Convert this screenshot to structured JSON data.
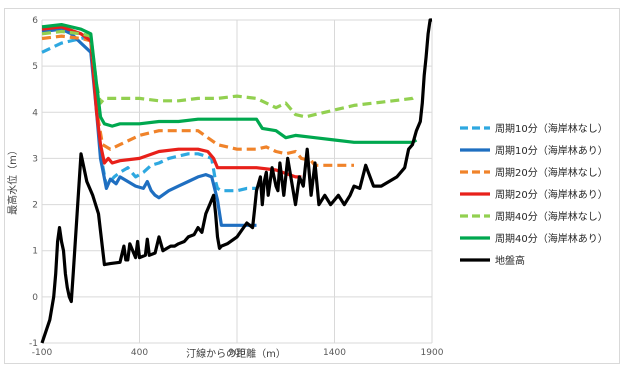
{
  "chart_data": {
    "type": "line",
    "xlabel": "汀線からの距離（m）",
    "ylabel": "最高水位（m）",
    "xlim": [
      -100,
      1900
    ],
    "ylim": [
      -1,
      6
    ],
    "xticks": [
      "-100",
      "400",
      "900",
      "1400",
      "1900"
    ],
    "yticks": [
      "-1",
      "0",
      "1",
      "2",
      "3",
      "4",
      "5",
      "6"
    ],
    "grid": true,
    "legend_position": "right",
    "series": [
      {
        "name": "周期10分（海岸林なし）",
        "color": "#2ea8e0",
        "dash": "dashed",
        "x": [
          -100,
          0,
          100,
          150,
          200,
          230,
          250,
          270,
          300,
          340,
          380,
          420,
          460,
          500,
          550,
          600,
          650,
          700,
          740,
          770,
          790,
          800,
          820,
          860,
          900,
          950,
          1000
        ],
        "y": [
          5.3,
          5.5,
          5.6,
          5.65,
          3.1,
          2.4,
          2.5,
          2.6,
          2.7,
          2.8,
          2.6,
          2.7,
          2.85,
          2.9,
          3.0,
          3.05,
          3.1,
          3.1,
          3.05,
          3.0,
          2.5,
          2.35,
          2.3,
          2.3,
          2.3,
          2.35,
          2.35
        ]
      },
      {
        "name": "周期10分（海岸林あり）",
        "color": "#1f6fc1",
        "dash": "solid",
        "x": [
          -100,
          0,
          50,
          100,
          150,
          180,
          200,
          230,
          250,
          280,
          300,
          340,
          380,
          420,
          440,
          460,
          480,
          500,
          550,
          600,
          650,
          700,
          740,
          770,
          800,
          820,
          860,
          900,
          950,
          1000
        ],
        "y": [
          5.75,
          5.8,
          5.7,
          5.5,
          5.3,
          4.0,
          3.0,
          2.35,
          2.55,
          2.45,
          2.6,
          2.5,
          2.4,
          2.35,
          2.5,
          2.3,
          2.2,
          2.15,
          2.3,
          2.4,
          2.5,
          2.6,
          2.65,
          2.6,
          2.1,
          1.55,
          1.55,
          1.55,
          1.55,
          1.55
        ]
      },
      {
        "name": "周期20分（海岸林なし）",
        "color": "#f0832a",
        "dash": "dashed",
        "x": [
          -100,
          0,
          100,
          150,
          190,
          210,
          250,
          300,
          400,
          500,
          600,
          700,
          800,
          900,
          1000,
          1050,
          1100,
          1150,
          1200,
          1230,
          1280,
          1300,
          1400,
          1500
        ],
        "y": [
          5.6,
          5.65,
          5.6,
          5.55,
          3.8,
          3.3,
          3.2,
          3.3,
          3.5,
          3.6,
          3.6,
          3.6,
          3.3,
          3.2,
          3.2,
          3.25,
          3.15,
          3.1,
          3.15,
          3.0,
          2.95,
          2.85,
          2.85,
          2.85
        ]
      },
      {
        "name": "周期20分（海岸林あり）",
        "color": "#e8201a",
        "dash": "solid",
        "x": [
          -100,
          0,
          100,
          150,
          180,
          200,
          220,
          240,
          260,
          300,
          400,
          500,
          600,
          700,
          750,
          780,
          800,
          850,
          900,
          1000,
          1100,
          1200,
          1220,
          1230
        ],
        "y": [
          5.8,
          5.85,
          5.7,
          5.55,
          4.0,
          3.3,
          2.9,
          3.0,
          2.9,
          2.95,
          3.0,
          3.15,
          3.2,
          3.2,
          3.15,
          3.0,
          2.8,
          2.8,
          2.8,
          2.8,
          2.75,
          2.6,
          2.6,
          2.6
        ]
      },
      {
        "name": "周期40分（海岸林なし）",
        "color": "#92d050",
        "dash": "dashed",
        "x": [
          -100,
          0,
          100,
          150,
          180,
          200,
          220,
          260,
          300,
          400,
          500,
          600,
          700,
          800,
          900,
          1000,
          1050,
          1100,
          1150,
          1200,
          1250,
          1300,
          1400,
          1500,
          1600,
          1700,
          1800,
          1820
        ],
        "y": [
          5.7,
          5.75,
          5.7,
          5.65,
          4.6,
          4.2,
          4.3,
          4.3,
          4.3,
          4.3,
          4.25,
          4.25,
          4.3,
          4.3,
          4.35,
          4.3,
          4.2,
          4.1,
          4.2,
          3.95,
          3.9,
          3.95,
          4.05,
          4.15,
          4.2,
          4.25,
          4.3,
          4.35
        ]
      },
      {
        "name": "周期40分（海岸林あり）",
        "color": "#00a84f",
        "dash": "solid",
        "x": [
          -100,
          0,
          100,
          150,
          180,
          200,
          220,
          260,
          300,
          400,
          500,
          600,
          700,
          800,
          900,
          1000,
          1030,
          1100,
          1150,
          1200,
          1300,
          1400,
          1500,
          1600,
          1700,
          1800,
          1820
        ],
        "y": [
          5.85,
          5.9,
          5.8,
          5.7,
          4.6,
          3.9,
          3.75,
          3.7,
          3.75,
          3.75,
          3.8,
          3.8,
          3.85,
          3.85,
          3.85,
          3.85,
          3.65,
          3.6,
          3.45,
          3.5,
          3.45,
          3.4,
          3.35,
          3.35,
          3.35,
          3.35,
          3.4
        ]
      },
      {
        "name": "地盤高",
        "color": "#000000",
        "dash": "solid",
        "x": [
          -100,
          -60,
          -40,
          -30,
          -20,
          -10,
          0,
          10,
          20,
          30,
          40,
          50,
          60,
          80,
          100,
          130,
          160,
          190,
          220,
          250,
          300,
          320,
          330,
          340,
          350,
          380,
          390,
          400,
          430,
          440,
          450,
          480,
          500,
          520,
          540,
          560,
          580,
          600,
          630,
          650,
          680,
          700,
          720,
          740,
          760,
          780,
          790,
          800,
          810,
          820,
          850,
          900,
          950,
          980,
          990,
          1000,
          1020,
          1030,
          1040,
          1050,
          1060,
          1080,
          1100,
          1110,
          1120,
          1140,
          1160,
          1180,
          1200,
          1220,
          1240,
          1260,
          1280,
          1300,
          1320,
          1350,
          1380,
          1400,
          1420,
          1450,
          1480,
          1500,
          1530,
          1560,
          1600,
          1640,
          1680,
          1720,
          1760,
          1780,
          1800,
          1820,
          1840,
          1850,
          1860,
          1870,
          1880,
          1890,
          1900
        ],
        "y": [
          -1.0,
          -0.5,
          0.0,
          0.5,
          1.2,
          1.5,
          1.2,
          1.0,
          0.5,
          0.2,
          0.0,
          -0.1,
          0.5,
          1.8,
          3.1,
          2.5,
          2.2,
          1.8,
          0.7,
          0.72,
          0.75,
          1.1,
          0.8,
          0.8,
          1.15,
          0.85,
          1.2,
          0.85,
          0.9,
          1.25,
          0.9,
          0.95,
          1.3,
          1.0,
          1.05,
          1.1,
          1.1,
          1.15,
          1.2,
          1.3,
          1.35,
          1.5,
          1.4,
          1.8,
          2.0,
          2.2,
          1.8,
          1.3,
          1.05,
          1.1,
          1.15,
          1.3,
          1.6,
          1.5,
          1.9,
          2.3,
          2.6,
          2.0,
          2.5,
          2.7,
          2.2,
          2.8,
          2.4,
          2.3,
          2.9,
          2.2,
          3.0,
          2.5,
          2.0,
          2.6,
          2.4,
          3.2,
          2.2,
          2.9,
          2.0,
          2.2,
          2.0,
          2.1,
          2.2,
          2.0,
          2.2,
          2.4,
          2.35,
          2.85,
          2.4,
          2.4,
          2.5,
          2.6,
          2.8,
          3.2,
          3.3,
          3.6,
          3.8,
          4.2,
          4.8,
          5.2,
          5.7,
          6.0,
          6.0
        ]
      }
    ]
  }
}
